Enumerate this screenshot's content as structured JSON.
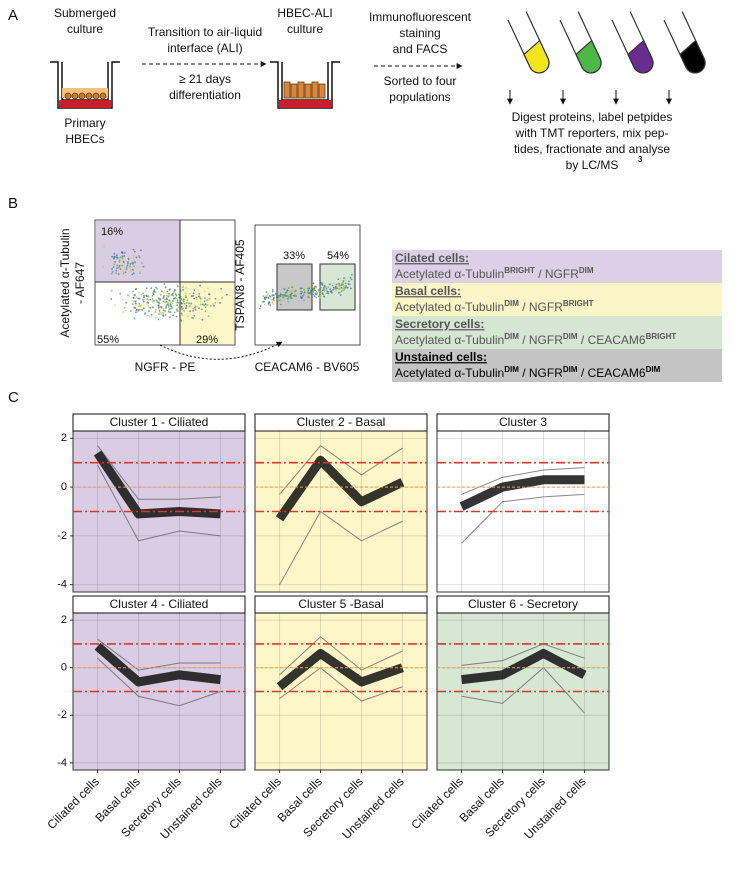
{
  "panel_a": {
    "label": "A",
    "submerged": [
      "Submerged",
      "culture"
    ],
    "primary": [
      "Primary",
      "HBECs"
    ],
    "transition": [
      "Transition to air-liquid",
      "interface (ALI)"
    ],
    "days": [
      "≥ 21 days",
      "differentiation"
    ],
    "ali": [
      "HBEC-ALI",
      "culture"
    ],
    "staining": [
      "Immunofluorescent",
      "staining",
      "and FACS"
    ],
    "sorted": [
      "Sorted to four",
      "populations"
    ],
    "digest": [
      "Digest proteins, label petpides",
      "with TMT reporters, mix pep-",
      "tides, fractionate and analyse",
      "by LC/MS"
    ],
    "digest_sup": "3"
  },
  "panel_b": {
    "label": "B",
    "plot1": {
      "ylabel": [
        "Acetylated α-Tubulin",
        "- AF647"
      ],
      "xlabel": "NGFR - PE",
      "quadrants": [
        "16%",
        "55%",
        "29%"
      ]
    },
    "plot2": {
      "ylabel": "TSPAN8 - AF405",
      "xlabel": "CEACAM6 - BV605",
      "gates": [
        "33%",
        "54%"
      ]
    },
    "legend": [
      {
        "heading": "Cilated cells:",
        "markers": [
          {
            "text": "Acetylated α-Tubulin"
          },
          {
            "sup": "BRIGHT"
          },
          {
            "text": " / NGFR"
          },
          {
            "sup": "DIM"
          }
        ]
      },
      {
        "heading": "Basal cells:",
        "markers": [
          {
            "text": "Acetylated α-Tubulin"
          },
          {
            "sup": "DIM"
          },
          {
            "text": " / NGFR"
          },
          {
            "sup": "BRIGHT"
          }
        ]
      },
      {
        "heading": "Secretory cells:",
        "markers": [
          {
            "text": "Acetylated α-Tubulin"
          },
          {
            "sup": "DIM"
          },
          {
            "text": " / NGFR"
          },
          {
            "sup": "DIM"
          },
          {
            "text": " / CEACAM6"
          },
          {
            "sup": "BRIGHT"
          }
        ]
      },
      {
        "heading": "Unstained cells:",
        "markers": [
          {
            "text": "Acetylated α-Tubulin"
          },
          {
            "sup": "DIM"
          },
          {
            "text": " / NGFR"
          },
          {
            "sup": "DIM"
          },
          {
            "text": " / CEACAM6"
          },
          {
            "sup": "DIM"
          }
        ]
      }
    ]
  },
  "panel_c_label": "C",
  "chart_data": {
    "type": "line",
    "categories": [
      "Ciliated cells",
      "Basal cells",
      "Secretory cells",
      "Unstained cells"
    ],
    "ylim": [
      -4.3,
      2.3
    ],
    "yticks": [
      -4,
      -2,
      0,
      2
    ],
    "grid": true,
    "hlines": [
      {
        "value": 1,
        "color": "#e3342a"
      },
      {
        "value": 0,
        "color": "#f0a040"
      },
      {
        "value": -1,
        "color": "#e3342a"
      }
    ],
    "panels": [
      {
        "title": "Cluster 1 - Ciliated",
        "background": "#d9cde4",
        "values": [
          1.4,
          -1.1,
          -1.0,
          -1.1
        ],
        "low": [
          0.9,
          -2.2,
          -1.8,
          -2.0
        ],
        "high": [
          1.7,
          -0.5,
          -0.5,
          -0.4
        ]
      },
      {
        "title": "Cluster 2 - Basal",
        "background": "#fdf6c9",
        "values": [
          -1.3,
          1.1,
          -0.6,
          0.2
        ],
        "low": [
          -4.0,
          -1.0,
          -2.2,
          -1.4
        ],
        "high": [
          -0.3,
          1.7,
          0.5,
          1.6
        ]
      },
      {
        "title": "Cluster 3",
        "background": "#ffffff",
        "values": [
          -0.8,
          0.0,
          0.3,
          0.3
        ],
        "low": [
          -2.3,
          -0.6,
          -0.4,
          -0.3
        ],
        "high": [
          -0.3,
          0.4,
          0.7,
          0.8
        ]
      },
      {
        "title": "Cluster 4 - Ciliated",
        "background": "#d9cde4",
        "values": [
          0.9,
          -0.6,
          -0.3,
          -0.5
        ],
        "low": [
          0.4,
          -1.2,
          -1.6,
          -1.0
        ],
        "high": [
          1.2,
          -0.1,
          0.2,
          0.2
        ]
      },
      {
        "title": "Cluster 5 -Basal",
        "background": "#fdf6c9",
        "values": [
          -0.8,
          0.6,
          -0.6,
          0.0
        ],
        "low": [
          -1.3,
          0.0,
          -1.4,
          -0.8
        ],
        "high": [
          -0.3,
          1.3,
          -0.1,
          0.7
        ]
      },
      {
        "title": "Cluster 6 - Secretory",
        "background": "#d6e7d3",
        "values": [
          -0.5,
          -0.3,
          0.6,
          -0.3
        ],
        "low": [
          -1.2,
          -1.5,
          0.0,
          -1.9
        ],
        "high": [
          0.1,
          0.3,
          1.0,
          0.4
        ]
      }
    ]
  }
}
